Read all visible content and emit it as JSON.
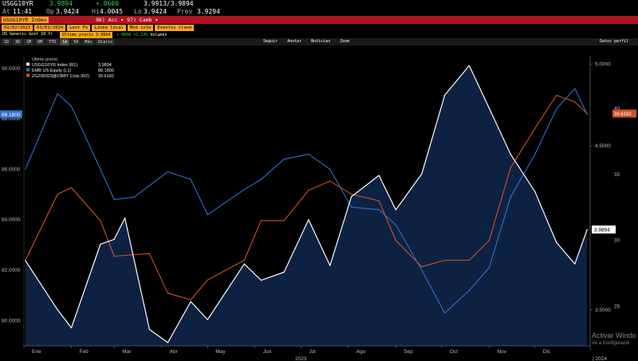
{
  "header": {
    "ticker": "USGG10YR",
    "last": "3.9894",
    "change": "+.0600",
    "bidask": "3.9913/3.9894",
    "time_label": "At",
    "time": "11:41",
    "open_label": "Op",
    "open": "3.9424",
    "high_label": "Hi",
    "high": "4.0045",
    "low_label": "Lo",
    "low": "3.9424",
    "prev_label": "Prev",
    "prev": "3.9294"
  },
  "toolbar": {
    "security": "USGG10YR Index",
    "actions": "96) Acc  ▾   97) Camb  ▾",
    "row4_buttons": [
      "01/02/2023",
      "01/01/2024",
      "Last Px",
      "Línea local",
      "Mod inte",
      "Eventos clave"
    ],
    "row5_text": "US Generic Govt 10 Yr",
    "row5_buttons": [
      "Último precio 3.9894",
      "+.0600",
      "+1.53%",
      "Volumen"
    ],
    "periods": [
      "1D",
      "3D",
      "1M",
      "6M",
      "YTD",
      "1A",
      "5A",
      "Máx",
      "Diario"
    ],
    "selected_period": "1A",
    "tools": [
      "Seguir",
      "Anotar",
      "Noticias",
      "Zoom"
    ],
    "right_label": "Datos perfil"
  },
  "legend": {
    "title": "Último precio",
    "items": [
      {
        "name": "USGG10YR Index (R1)",
        "value": "3.9894",
        "color": "#ffffff"
      },
      {
        "name": "EMB US Equity (L1)",
        "value": "88.1800",
        "color": "#2f6fd0"
      },
      {
        "name": "ZG290323@CBBT Corp (R2)",
        "value": "39.6182",
        "color": "#d2502a"
      }
    ]
  },
  "chart_data": [
    {
      "type": "area",
      "name": "USGG10YR Index (R1)",
      "x": [
        "2023-01-02",
        "2023-01-23",
        "2023-02-01",
        "2023-02-20",
        "2023-03-01",
        "2023-03-08",
        "2023-03-24",
        "2023-04-05",
        "2023-04-20",
        "2023-05-01",
        "2023-05-25",
        "2023-06-05",
        "2023-06-20",
        "2023-07-06",
        "2023-07-20",
        "2023-08-03",
        "2023-08-21",
        "2023-09-01",
        "2023-09-18",
        "2023-10-03",
        "2023-10-19",
        "2023-11-01",
        "2023-11-15",
        "2023-12-01",
        "2023-12-15",
        "2023-12-27",
        "2024-01-04"
      ],
      "y": [
        3.8,
        3.5,
        3.39,
        3.9,
        3.93,
        4.06,
        3.38,
        3.3,
        3.55,
        3.44,
        3.78,
        3.68,
        3.73,
        4.05,
        3.77,
        4.19,
        4.32,
        4.11,
        4.33,
        4.81,
        4.99,
        4.73,
        4.45,
        4.22,
        3.91,
        3.78,
        3.99
      ],
      "color": "#ffffff",
      "fill": "#0e2447"
    },
    {
      "type": "line",
      "name": "EMB US Equity (L1)",
      "x": [
        "2023-01-02",
        "2023-01-23",
        "2023-02-01",
        "2023-02-20",
        "2023-03-01",
        "2023-03-14",
        "2023-04-05",
        "2023-04-20",
        "2023-05-01",
        "2023-05-25",
        "2023-06-05",
        "2023-06-20",
        "2023-07-06",
        "2023-07-20",
        "2023-08-03",
        "2023-08-21",
        "2023-09-01",
        "2023-09-18",
        "2023-10-03",
        "2023-10-19",
        "2023-11-01",
        "2023-11-15",
        "2023-12-01",
        "2023-12-15",
        "2023-12-27",
        "2024-01-04"
      ],
      "y": [
        86.0,
        89.0,
        88.5,
        86.0,
        84.8,
        84.9,
        85.9,
        85.6,
        84.2,
        85.2,
        85.6,
        86.4,
        86.6,
        86.0,
        84.5,
        84.4,
        83.8,
        82.0,
        80.3,
        81.2,
        82.1,
        84.9,
        86.6,
        88.4,
        89.2,
        88.18
      ],
      "color": "#2f6fd0"
    },
    {
      "type": "line",
      "name": "ZG290323@CBBT Corp (R2)",
      "x": [
        "2023-01-02",
        "2023-01-23",
        "2023-02-01",
        "2023-02-20",
        "2023-03-01",
        "2023-03-24",
        "2023-04-05",
        "2023-04-20",
        "2023-05-01",
        "2023-05-25",
        "2023-06-05",
        "2023-06-20",
        "2023-07-06",
        "2023-07-20",
        "2023-08-03",
        "2023-08-21",
        "2023-09-01",
        "2023-09-18",
        "2023-10-03",
        "2023-10-19",
        "2023-11-01",
        "2023-11-15",
        "2023-12-01",
        "2023-12-15",
        "2023-12-27",
        "2024-01-04"
      ],
      "y": [
        28.5,
        33.5,
        34.0,
        31.5,
        28.8,
        29.0,
        26.0,
        25.5,
        27.0,
        28.5,
        31.5,
        31.5,
        33.8,
        34.5,
        33.5,
        33.0,
        30.0,
        28.0,
        28.5,
        28.5,
        30.0,
        35.5,
        38.5,
        41.0,
        40.5,
        39.6182
      ],
      "color": "#d2502a"
    }
  ],
  "axes": {
    "left_ticks": [
      "90.0000",
      "88.0000",
      "86.0000",
      "84.0000",
      "82.0000",
      "80.0000"
    ],
    "left_range": [
      79.0,
      90.5
    ],
    "right1_ticks": [
      "5.0000",
      "4.5000",
      "3.5000"
    ],
    "right1_range": [
      3.28,
      5.05
    ],
    "right2_ticks": [
      "40",
      "35",
      "30",
      "25"
    ],
    "right2_range": [
      22.0,
      44.0
    ],
    "months": [
      "Ene",
      "Feb",
      "Mar",
      "Abr",
      "May",
      "Jun",
      "Jul",
      "Ago",
      "Sep",
      "Oct",
      "Nov",
      "Dic"
    ],
    "year": "2023",
    "next_year": "2024",
    "x_range": [
      "2023-01-01",
      "2024-01-06"
    ]
  },
  "price_tags": {
    "left": "88.1800",
    "right_white": "3.9894",
    "right_orange": "39.6182"
  },
  "watermark": {
    "line1": "Activar Windo",
    "line2": "Ve a Configuració"
  }
}
